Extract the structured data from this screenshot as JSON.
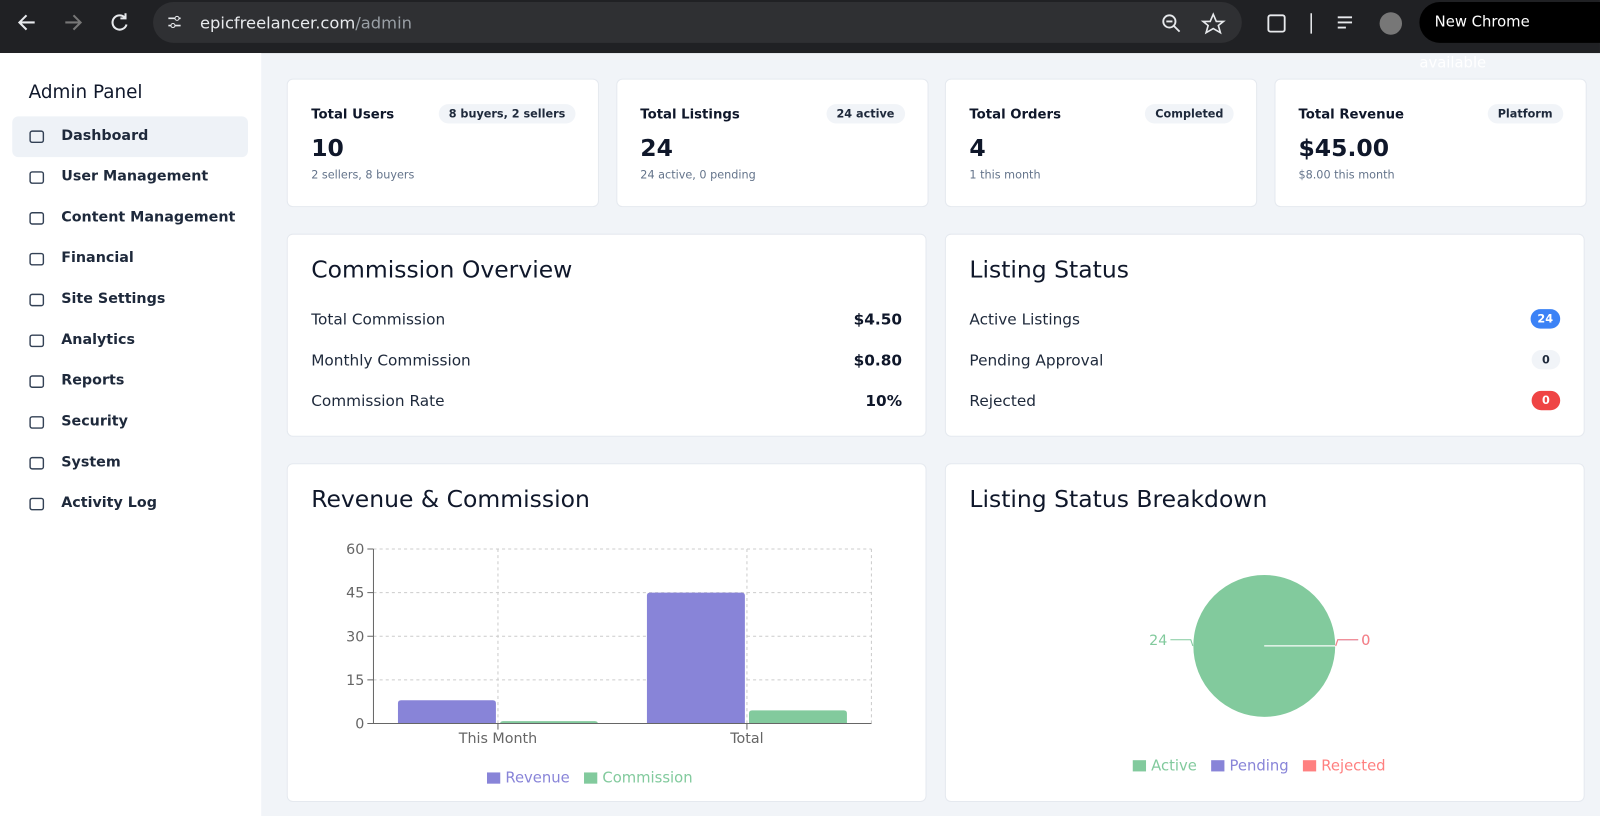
{
  "browser": {
    "url_domain": "epicfreelancer.com",
    "url_path": "/admin",
    "update_button": "New Chrome available"
  },
  "sidebar": {
    "title": "Admin Panel",
    "items": [
      "Dashboard",
      "User Management",
      "Content Management",
      "Financial",
      "Site Settings",
      "Analytics",
      "Reports",
      "Security",
      "System",
      "Activity Log"
    ]
  },
  "stats": [
    {
      "title": "Total Users",
      "badge": "8 buyers, 2 sellers",
      "value": "10",
      "subtitle": "2 sellers, 8 buyers"
    },
    {
      "title": "Total Listings",
      "badge": "24 active",
      "value": "24",
      "subtitle": "24 active, 0 pending"
    },
    {
      "title": "Total Orders",
      "badge": "Completed",
      "value": "4",
      "subtitle": "1 this month"
    },
    {
      "title": "Total Revenue",
      "badge": "Platform",
      "value": "$45.00",
      "subtitle": "$8.00 this month"
    }
  ],
  "commission_overview": {
    "title": "Commission Overview",
    "rows": [
      {
        "label": "Total Commission",
        "value": "$4.50"
      },
      {
        "label": "Monthly Commission",
        "value": "$0.80"
      },
      {
        "label": "Commission Rate",
        "value": "10%"
      }
    ]
  },
  "listing_status": {
    "title": "Listing Status",
    "rows": [
      {
        "label": "Active Listings",
        "count": 24,
        "style": "blue"
      },
      {
        "label": "Pending Approval",
        "count": 0,
        "style": "grey"
      },
      {
        "label": "Rejected",
        "count": 0,
        "style": "red"
      }
    ]
  },
  "revenue_chart": {
    "type": "bar",
    "title": "Revenue & Commission",
    "categories": [
      "This Month",
      "Total"
    ],
    "series": [
      {
        "name": "Revenue",
        "color": "#8884d8",
        "values": [
          8,
          45
        ]
      },
      {
        "name": "Commission",
        "color": "#82ca9d",
        "values": [
          0.8,
          4.5
        ]
      }
    ],
    "ylim": [
      0,
      60
    ],
    "yticks": [
      0,
      15,
      30,
      45,
      60
    ],
    "grid": true
  },
  "status_chart": {
    "type": "pie",
    "title": "Listing Status Breakdown",
    "categories": [
      "Active",
      "Pending",
      "Rejected"
    ],
    "values": [
      24,
      0,
      0
    ],
    "colors": [
      "#82ca9d",
      "#8884d8",
      "#ff8080"
    ]
  }
}
